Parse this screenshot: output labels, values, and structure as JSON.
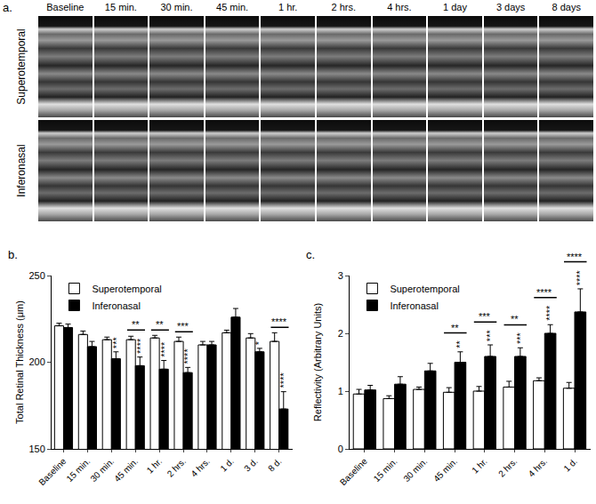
{
  "panel_a": {
    "label": "a.",
    "columns": [
      "Baseline",
      "15 min.",
      "30 min.",
      "45 min.",
      "1 hr.",
      "2 hrs.",
      "4 hrs.",
      "1 day",
      "3 days",
      "8 days"
    ],
    "rows": [
      "Superotemporal",
      "Inferonasal"
    ]
  },
  "chart_data": [
    {
      "type": "bar",
      "title": "b.",
      "y_label": "Total Retinal Thickness (μm)",
      "categories": [
        "Baseline",
        "15 min.",
        "30 min.",
        "45 min.",
        "1 hr.",
        "2 hrs.",
        "4 hrs.",
        "1 d.",
        "3 d.",
        "8 d."
      ],
      "series": [
        {
          "name": "Superotemporal",
          "color": "#ffffff",
          "values": [
            221,
            216,
            213,
            213,
            214,
            212,
            210,
            217,
            214,
            212
          ],
          "errors": [
            1.5,
            2,
            1.5,
            2,
            1.5,
            2.5,
            2,
            1.5,
            2.5,
            5
          ]
        },
        {
          "name": "Inferonasal",
          "color": "#000000",
          "values": [
            220,
            209,
            202,
            198,
            196,
            194,
            210,
            226,
            206,
            173
          ],
          "errors": [
            2,
            3,
            4,
            5,
            5,
            3,
            2,
            5,
            2,
            10
          ]
        }
      ],
      "ylim": [
        150,
        250
      ],
      "yticks": [
        150,
        200,
        250
      ],
      "grid": false,
      "legend": "top-left",
      "annotations": [
        {
          "category": "45 min.",
          "text": "**"
        },
        {
          "category": "1 hr.",
          "text": "**"
        },
        {
          "category": "2 hrs.",
          "text": "***"
        },
        {
          "category": "8 d.",
          "text": "****"
        },
        {
          "category": "30 min.",
          "series": "Inferonasal",
          "text": "***"
        },
        {
          "category": "45 min.",
          "series": "Inferonasal",
          "text": "****"
        },
        {
          "category": "1 hr.",
          "series": "Inferonasal",
          "text": "****"
        },
        {
          "category": "2 hrs.",
          "series": "Inferonasal",
          "text": "****"
        },
        {
          "category": "3 d.",
          "series": "Inferonasal",
          "text": "*"
        },
        {
          "category": "8 d.",
          "series": "Inferonasal",
          "text": "****"
        }
      ]
    },
    {
      "type": "bar",
      "title": "c.",
      "y_label": "Reflectivity (Arbitrary Units)",
      "categories": [
        "Baseline",
        "15 min.",
        "30 min.",
        "45 min.",
        "1 hr.",
        "2 hrs.",
        "4 hrs.",
        "1 d."
      ],
      "series": [
        {
          "name": "Superotemporal",
          "color": "#ffffff",
          "values": [
            0.95,
            0.87,
            1.03,
            0.98,
            1.0,
            1.07,
            1.18,
            1.05
          ],
          "errors": [
            0.08,
            0.05,
            0.04,
            0.08,
            0.08,
            0.1,
            0.05,
            0.1
          ]
        },
        {
          "name": "Inferonasal",
          "color": "#000000",
          "values": [
            1.02,
            1.12,
            1.35,
            1.5,
            1.6,
            1.6,
            2.0,
            2.37
          ],
          "errors": [
            0.08,
            0.13,
            0.13,
            0.18,
            0.2,
            0.15,
            0.15,
            0.4
          ]
        }
      ],
      "ylim": [
        0,
        3
      ],
      "yticks": [
        0,
        1,
        2,
        3
      ],
      "grid": false,
      "legend": "top-left",
      "annotations": [
        {
          "category": "45 min.",
          "text": "**"
        },
        {
          "category": "1 hr.",
          "text": "***"
        },
        {
          "category": "2 hrs.",
          "text": "**"
        },
        {
          "category": "4 hrs.",
          "text": "****"
        },
        {
          "category": "1 d.",
          "text": "****"
        },
        {
          "category": "45 min.",
          "series": "Inferonasal",
          "text": "**"
        },
        {
          "category": "1 hr.",
          "series": "Inferonasal",
          "text": "***"
        },
        {
          "category": "2 hrs.",
          "series": "Inferonasal",
          "text": "***"
        },
        {
          "category": "4 hrs.",
          "series": "Inferonasal",
          "text": "****"
        },
        {
          "category": "1 d.",
          "series": "Inferonasal",
          "text": "****"
        }
      ]
    }
  ]
}
